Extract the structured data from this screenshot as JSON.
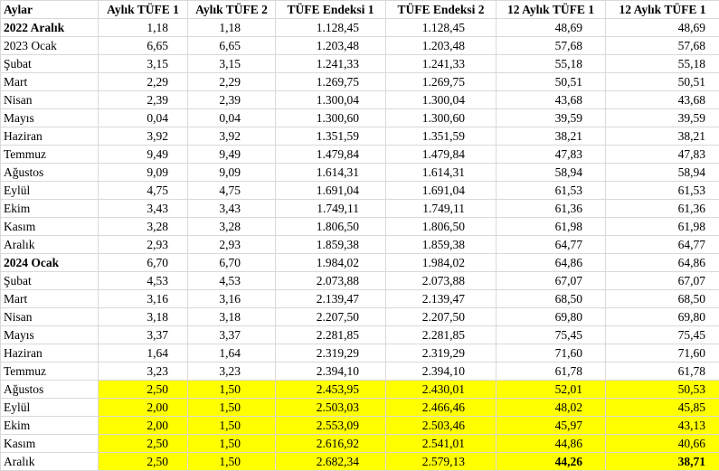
{
  "table": {
    "header": [
      "Aylar",
      "Aylık TÜFE 1",
      "Aylık TÜFE 2",
      "TÜFE Endeksi 1",
      "TÜFE Endeksi 2",
      "12 Aylık TÜFE 1",
      "12 Aylık TÜFE 1"
    ],
    "rows": [
      [
        "2022 Aralık",
        "1,18",
        "1,18",
        "1.128,45",
        "1.128,45",
        "48,69",
        "48,69"
      ],
      [
        "2023 Ocak",
        "6,65",
        "6,65",
        "1.203,48",
        "1.203,48",
        "57,68",
        "57,68"
      ],
      [
        "Şubat",
        "3,15",
        "3,15",
        "1.241,33",
        "1.241,33",
        "55,18",
        "55,18"
      ],
      [
        "Mart",
        "2,29",
        "2,29",
        "1.269,75",
        "1.269,75",
        "50,51",
        "50,51"
      ],
      [
        "Nisan",
        "2,39",
        "2,39",
        "1.300,04",
        "1.300,04",
        "43,68",
        "43,68"
      ],
      [
        "Mayıs",
        "0,04",
        "0,04",
        "1.300,60",
        "1.300,60",
        "39,59",
        "39,59"
      ],
      [
        "Haziran",
        "3,92",
        "3,92",
        "1.351,59",
        "1.351,59",
        "38,21",
        "38,21"
      ],
      [
        "Temmuz",
        "9,49",
        "9,49",
        "1.479,84",
        "1.479,84",
        "47,83",
        "47,83"
      ],
      [
        "Ağustos",
        "9,09",
        "9,09",
        "1.614,31",
        "1.614,31",
        "58,94",
        "58,94"
      ],
      [
        "Eylül",
        "4,75",
        "4,75",
        "1.691,04",
        "1.691,04",
        "61,53",
        "61,53"
      ],
      [
        "Ekim",
        "3,43",
        "3,43",
        "1.749,11",
        "1.749,11",
        "61,36",
        "61,36"
      ],
      [
        "Kasım",
        "3,28",
        "3,28",
        "1.806,50",
        "1.806,50",
        "61,98",
        "61,98"
      ],
      [
        "Aralık",
        "2,93",
        "2,93",
        "1.859,38",
        "1.859,38",
        "64,77",
        "64,77"
      ],
      [
        "2024 Ocak",
        "6,70",
        "6,70",
        "1.984,02",
        "1.984,02",
        "64,86",
        "64,86"
      ],
      [
        "Şubat",
        "4,53",
        "4,53",
        "2.073,88",
        "2.073,88",
        "67,07",
        "67,07"
      ],
      [
        "Mart",
        "3,16",
        "3,16",
        "2.139,47",
        "2.139,47",
        "68,50",
        "68,50"
      ],
      [
        "Nisan",
        "3,18",
        "3,18",
        "2.207,50",
        "2.207,50",
        "69,80",
        "69,80"
      ],
      [
        "Mayıs",
        "3,37",
        "3,37",
        "2.281,85",
        "2.281,85",
        "75,45",
        "75,45"
      ],
      [
        "Haziran",
        "1,64",
        "1,64",
        "2.319,29",
        "2.319,29",
        "71,60",
        "71,60"
      ],
      [
        "Temmuz",
        "3,23",
        "3,23",
        "2.394,10",
        "2.394,10",
        "61,78",
        "61,78"
      ],
      [
        "Ağustos",
        "2,50",
        "1,50",
        "2.453,95",
        "2.430,01",
        "52,01",
        "50,53"
      ],
      [
        "Eylül",
        "2,00",
        "1,50",
        "2.503,03",
        "2.466,46",
        "48,02",
        "45,85"
      ],
      [
        "Ekim",
        "2,00",
        "1,50",
        "2.553,09",
        "2.503,46",
        "45,97",
        "43,13"
      ],
      [
        "Kasım",
        "2,50",
        "1,50",
        "2.616,92",
        "2.541,01",
        "44,86",
        "40,66"
      ],
      [
        "Aralık",
        "2,50",
        "1,50",
        "2.682,34",
        "2.579,13",
        "44,26",
        "38,71"
      ]
    ]
  }
}
